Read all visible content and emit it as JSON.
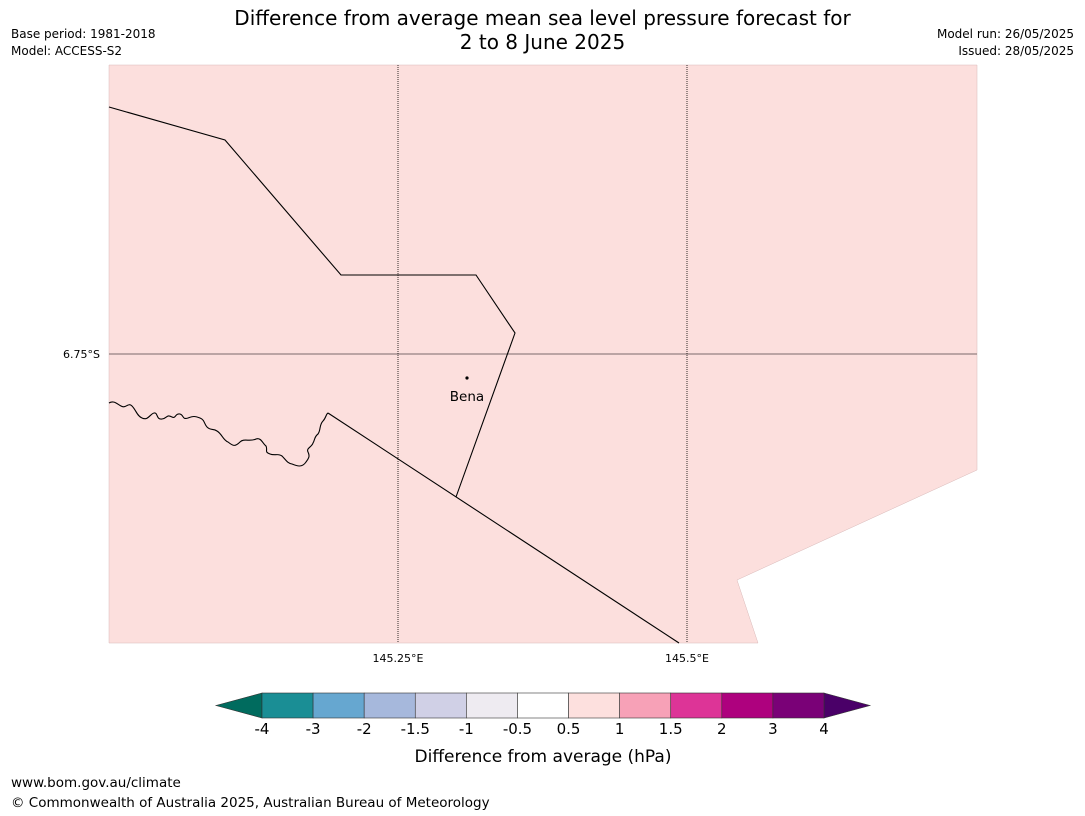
{
  "title": {
    "line1": "Difference from average mean sea level pressure forecast for",
    "line2": "2 to 8 June 2025"
  },
  "meta_left": {
    "base_period": "Base period: 1981-2018",
    "model": "Model: ACCESS-S2"
  },
  "meta_right": {
    "model_run": "Model run: 26/05/2025",
    "issued": "Issued: 28/05/2025"
  },
  "map": {
    "fill_color": "#fcdfdd",
    "lat_labels": [
      "6.75°S"
    ],
    "lon_labels": [
      "145.25°E",
      "145.5°E"
    ],
    "place": {
      "name": "Bena"
    }
  },
  "colorbar": {
    "title": "Difference from average (hPa)",
    "tick_labels": [
      "-4",
      "-3",
      "-2",
      "-1.5",
      "-1",
      "-0.5",
      "0.5",
      "1",
      "1.5",
      "2",
      "3",
      "4"
    ],
    "low_extend_color": "#006b5e",
    "high_extend_color": "#4a0068",
    "colors": [
      "#1a8e95",
      "#66a7d0",
      "#a6b8dc",
      "#d0d0e6",
      "#eeebf1",
      "#ffffff",
      "#fde0de",
      "#f7a1b7",
      "#dd3497",
      "#ae017e",
      "#7a0177"
    ]
  },
  "footer": {
    "url": "www.bom.gov.au/climate",
    "copyright": "© Commonwealth of Australia 2025, Australian Bureau of Meteorology"
  }
}
